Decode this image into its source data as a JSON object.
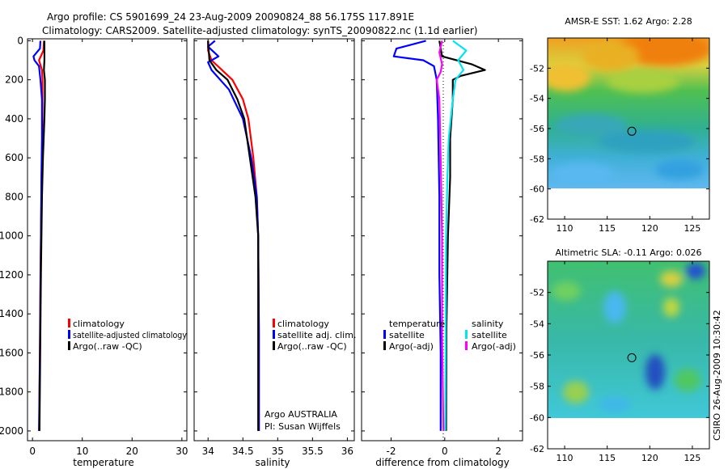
{
  "header": {
    "line1": "Argo profile: CS 5901699_24 23-Aug-2009 20090824_88 56.175S 117.891E",
    "line2": "Climatology: CARS2009. Satellite-adjusted climatology: synTS_20090822.nc (1.1d earlier)"
  },
  "side_label": "CSIRO 26-Aug-2009 10:30:42",
  "colors": {
    "clim": "#ff0000",
    "sat": "#0000ff",
    "argo": "#000000",
    "sat_diff": "#00e5ee",
    "argo_adj": "#ff00ff"
  },
  "chart_data": [
    {
      "id": "temperature",
      "type": "line",
      "xlabel": "temperature",
      "ylabel": "",
      "xlim": [
        -1,
        31
      ],
      "ylim": [
        2050,
        -10
      ],
      "xticks": [
        0,
        10,
        20,
        30
      ],
      "yticks": [
        0,
        200,
        400,
        600,
        800,
        1000,
        1200,
        1400,
        1600,
        1800,
        2000
      ],
      "legend": [
        "climatology",
        "satellite-adjusted climatology",
        "Argo(..raw -QC)"
      ],
      "annotations": [],
      "series": [
        {
          "name": "climatology",
          "color": "#ff0000",
          "x": [
            2.3,
            2.2,
            1.3,
            1.9,
            2.0,
            2.0,
            1.9,
            1.8,
            1.7,
            1.6,
            1.5,
            1.4,
            1.35
          ],
          "y": [
            0,
            50,
            100,
            150,
            200,
            400,
            600,
            800,
            1000,
            1200,
            1500,
            1800,
            2000
          ]
        },
        {
          "name": "satellite-adjusted climatology",
          "color": "#0000ff",
          "x": [
            1.6,
            1.5,
            0.2,
            0.4,
            1.3,
            1.6,
            1.9,
            1.9,
            1.8,
            1.7,
            1.6,
            1.5,
            1.4,
            1.3
          ],
          "y": [
            0,
            40,
            80,
            100,
            130,
            200,
            300,
            500,
            700,
            1000,
            1300,
            1600,
            1800,
            2000
          ]
        },
        {
          "name": "Argo(..raw -QC)",
          "color": "#000000",
          "x": [
            2.4,
            2.4,
            2.4,
            2.3,
            2.5,
            2.5,
            2.4,
            2.1,
            1.9,
            1.7,
            1.55,
            1.4
          ],
          "y": [
            0,
            50,
            100,
            150,
            200,
            300,
            400,
            600,
            800,
            1200,
            1600,
            2000
          ]
        }
      ]
    },
    {
      "id": "salinity",
      "type": "line",
      "xlabel": "salinity",
      "ylabel": "",
      "xlim": [
        33.8,
        36.1
      ],
      "ylim": [
        2050,
        -10
      ],
      "xticks": [
        34,
        34.5,
        35,
        35.5,
        36
      ],
      "yticks": [
        0,
        200,
        400,
        600,
        800,
        1000,
        1200,
        1400,
        1600,
        1800,
        2000
      ],
      "legend": [
        "climatology",
        "satellite adj. clim.",
        "Argo(..raw -QC)"
      ],
      "annotations": [
        "Argo AUSTRALIA",
        "PI: Susan Wijffels"
      ],
      "series": [
        {
          "name": "climatology",
          "color": "#ff0000",
          "x": [
            34.0,
            34.0,
            34.05,
            34.2,
            34.35,
            34.5,
            34.58,
            34.65,
            34.7,
            34.72,
            34.73,
            34.73
          ],
          "y": [
            0,
            50,
            100,
            150,
            200,
            300,
            400,
            600,
            800,
            1000,
            1500,
            2000
          ]
        },
        {
          "name": "satellite adj. clim.",
          "color": "#0000ff",
          "x": [
            34.1,
            34.0,
            34.15,
            34.0,
            34.05,
            34.3,
            34.5,
            34.62,
            34.7,
            34.72,
            34.73,
            34.73
          ],
          "y": [
            0,
            30,
            80,
            110,
            150,
            250,
            400,
            600,
            800,
            1000,
            1500,
            2000
          ]
        },
        {
          "name": "Argo(..raw -QC)",
          "color": "#000000",
          "x": [
            34.0,
            34.02,
            34.12,
            34.28,
            34.42,
            34.52,
            34.6,
            34.68,
            34.72,
            34.72,
            34.72
          ],
          "y": [
            0,
            100,
            150,
            200,
            300,
            400,
            600,
            800,
            1000,
            1500,
            2000
          ]
        }
      ]
    },
    {
      "id": "difference",
      "type": "line",
      "xlabel": "difference from climatology",
      "ylabel": "",
      "xlim": [
        -3.1,
        2.9
      ],
      "ylim": [
        2050,
        -10
      ],
      "xticks": [
        -2,
        0,
        2
      ],
      "yticks": [
        0,
        200,
        400,
        600,
        800,
        1000,
        1200,
        1400,
        1600,
        1800,
        2000
      ],
      "legend_titles": [
        "temperature",
        "salinity"
      ],
      "legend": [
        "satellite",
        "Argo(-adj)",
        "satellite",
        "Argo(-adj)"
      ],
      "annotations": [],
      "series": [
        {
          "name": "temperature satellite",
          "color": "#0000ff",
          "x": [
            -0.7,
            -1.8,
            -1.9,
            -0.8,
            -0.4,
            -0.3,
            -0.25,
            -0.2,
            -0.2,
            -0.15,
            -0.15
          ],
          "y": [
            0,
            40,
            80,
            100,
            130,
            200,
            400,
            800,
            1200,
            1600,
            2000
          ]
        },
        {
          "name": "temperature Argo(-adj)",
          "color": "#000000",
          "x": [
            -0.2,
            -0.1,
            1.0,
            1.5,
            0.6,
            0.3,
            0.3,
            0.2,
            0.2,
            0.12,
            0.06,
            0.05
          ],
          "y": [
            0,
            80,
            120,
            150,
            180,
            200,
            300,
            500,
            700,
            1000,
            1500,
            2000
          ]
        },
        {
          "name": "salinity satellite",
          "color": "#00e5ee",
          "x": [
            0.3,
            0.8,
            0.5,
            0.7,
            0.4,
            0.3,
            0.15,
            0.1,
            0.05,
            0.02
          ],
          "y": [
            0,
            50,
            100,
            150,
            200,
            300,
            500,
            700,
            1000,
            2000
          ]
        },
        {
          "name": "salinity Argo(-adj)",
          "color": "#ff00ff",
          "x": [
            -0.1,
            -0.2,
            -0.1,
            -0.15,
            -0.3,
            -0.2,
            -0.15,
            -0.1,
            -0.1,
            -0.05
          ],
          "y": [
            0,
            60,
            120,
            160,
            200,
            300,
            600,
            1000,
            1500,
            2000
          ]
        }
      ]
    },
    {
      "id": "sst_map",
      "type": "heatmap",
      "title": "AMSR-E SST: 1.62 Argo: 2.28",
      "xlim": [
        108,
        127
      ],
      "ylim": [
        -62,
        -50
      ],
      "xticks": [
        110,
        115,
        120,
        125
      ],
      "yticks": [
        -52,
        -54,
        -56,
        -58,
        -60,
        -62
      ],
      "marker": {
        "lon": 117.891,
        "lat": -56.175
      }
    },
    {
      "id": "sla_map",
      "type": "heatmap",
      "title": "Altimetric SLA: -0.11 Argo: 0.026",
      "xlim": [
        108,
        127
      ],
      "ylim": [
        -62,
        -50
      ],
      "xticks": [
        110,
        115,
        120,
        125
      ],
      "yticks": [
        -52,
        -54,
        -56,
        -58,
        -60,
        -62
      ],
      "marker": {
        "lon": 117.891,
        "lat": -56.175
      }
    }
  ]
}
